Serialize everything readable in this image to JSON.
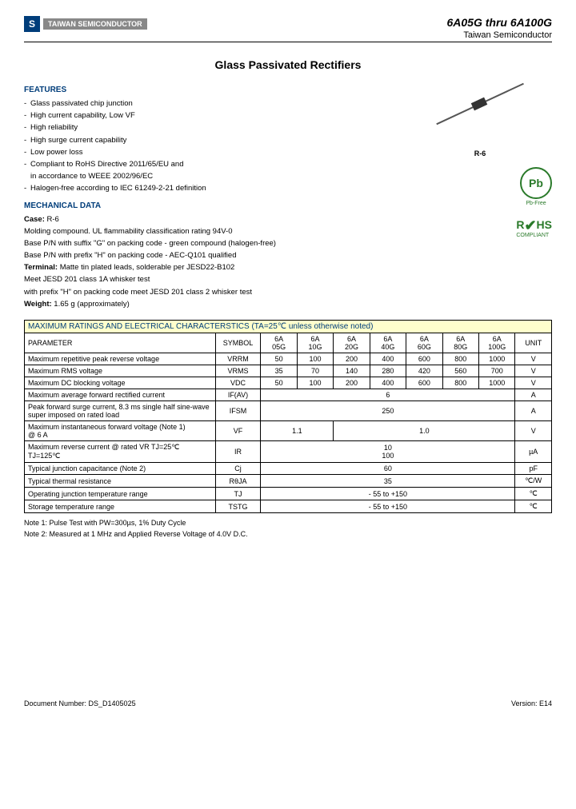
{
  "header": {
    "logo_text": "TAIWAN\nSEMICONDUCTOR",
    "part_range": "6A05G thru 6A100G",
    "company": "Taiwan Semiconductor"
  },
  "title": "Glass Passivated Rectifiers",
  "features": {
    "heading": "FEATURES",
    "items": [
      "Glass passivated chip junction",
      "High current capability, Low VF",
      "High reliability",
      "High surge current capability",
      "Low power loss",
      "Compliant to RoHS Directive 2011/65/EU and\n  in accordance to WEEE 2002/96/EC",
      "Halogen-free according to IEC 61249-2-21 definition"
    ]
  },
  "mechanical": {
    "heading": "MECHANICAL DATA",
    "case_label": "Case:",
    "case_val": "R-6",
    "l1": "Molding compound. UL flammability classification rating 94V-0",
    "l2": "Base P/N with suffix \"G\" on packing code - green compound (halogen-free)",
    "l3": "Base P/N with prefix \"H\" on packing code - AEC-Q101 qualified",
    "terminal_label": "Terminal:",
    "terminal_val": "Matte tin plated leads, solderable per JESD22-B102",
    "l4": "Meet JESD 201 class 1A whisker test",
    "l5": "with prefix \"H\" on packing code meet JESD 201 class 2 whisker test",
    "weight_label": "Weight:",
    "weight_val": "1.65 g (approximately)"
  },
  "package_label": "R-6",
  "badges": {
    "pb_text": "Pb",
    "pb_label": "Pb-Free",
    "rohs_text": "RoHS",
    "rohs_sub": "COMPLIANT"
  },
  "table": {
    "title": "MAXIMUM RATINGS AND ELECTRICAL CHARACTERSTICS (TA=25℃ unless otherwise noted)",
    "h_param": "PARAMETER",
    "h_symbol": "SYMBOL",
    "h_unit": "UNIT",
    "cols": [
      "6A\n05G",
      "6A\n10G",
      "6A\n20G",
      "6A\n40G",
      "6A\n60G",
      "6A\n80G",
      "6A\n100G"
    ],
    "rows": [
      {
        "param": "Maximum repetitive peak reverse voltage",
        "sym": "VRRM",
        "vals": [
          "50",
          "100",
          "200",
          "400",
          "600",
          "800",
          "1000"
        ],
        "unit": "V"
      },
      {
        "param": "Maximum RMS voltage",
        "sym": "VRMS",
        "vals": [
          "35",
          "70",
          "140",
          "280",
          "420",
          "560",
          "700"
        ],
        "unit": "V"
      },
      {
        "param": "Maximum DC blocking voltage",
        "sym": "VDC",
        "vals": [
          "50",
          "100",
          "200",
          "400",
          "600",
          "800",
          "1000"
        ],
        "unit": "V"
      },
      {
        "param": "Maximum average forward rectified current",
        "sym": "IF(AV)",
        "span7": "6",
        "unit": "A"
      },
      {
        "param": "Peak forward surge current, 8.3 ms single half sine-wave super imposed on rated load",
        "sym": "IFSM",
        "span7": "250",
        "unit": "A"
      },
      {
        "param": "Maximum instantaneous forward voltage (Note 1)\n@ 6 A",
        "sym": "VF",
        "span2": "1.1",
        "span5": "1.0",
        "unit": "V"
      },
      {
        "param": "Maximum reverse current @ rated VR    TJ=25℃\n                                                            TJ=125℃",
        "sym": "IR",
        "span7_2": [
          "10",
          "100"
        ],
        "unit": "µA"
      },
      {
        "param": "Typical junction capacitance (Note 2)",
        "sym": "Cj",
        "span7": "60",
        "unit": "pF"
      },
      {
        "param": "Typical thermal resistance",
        "sym": "RθJA",
        "span7": "35",
        "unit": "℃/W"
      },
      {
        "param": "Operating junction temperature range",
        "sym": "TJ",
        "span7": "- 55 to +150",
        "unit": "℃"
      },
      {
        "param": "Storage temperature range",
        "sym": "TSTG",
        "span7": "- 55 to +150",
        "unit": "℃"
      }
    ]
  },
  "notes": {
    "n1": "Note 1: Pulse Test with PW=300µs, 1% Duty Cycle",
    "n2": "Note 2: Measured at 1 MHz and Applied Reverse Voltage of 4.0V D.C."
  },
  "footer": {
    "doc": "Document Number: DS_D1405025",
    "version": "Version: E14"
  },
  "colors": {
    "heading": "#003d7a",
    "table_bg": "#ffffcc",
    "green": "#2a7a2a"
  }
}
